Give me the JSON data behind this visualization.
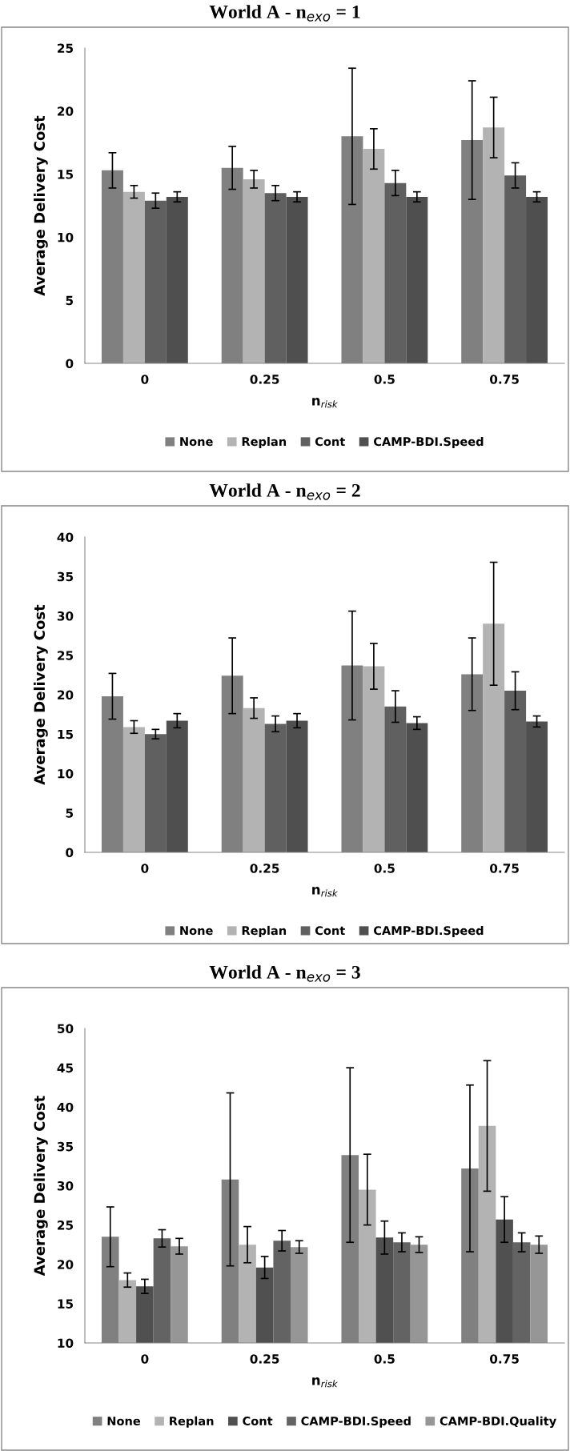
{
  "chart_data": [
    {
      "type": "bar",
      "title": "World A - n$_{exo}$ = 1",
      "xlabel": "n$_{risk}$",
      "ylabel": "Average Delivery Cost",
      "categories": [
        "0",
        "0.25",
        "0.5",
        "0.75"
      ],
      "ylim": [
        0,
        25
      ],
      "yticks": [
        0,
        5,
        10,
        15,
        20,
        25
      ],
      "grid": false,
      "legend": "bottom",
      "series": [
        {
          "name": "None",
          "color": "#808080",
          "values": [
            15.3,
            15.5,
            18.0,
            17.7
          ],
          "errors": [
            1.4,
            1.7,
            5.4,
            4.7
          ]
        },
        {
          "name": "Replan",
          "color": "#b3b3b3",
          "values": [
            13.6,
            14.6,
            17.0,
            18.7
          ],
          "errors": [
            0.5,
            0.7,
            1.6,
            2.4
          ]
        },
        {
          "name": "Cont",
          "color": "#606060",
          "values": [
            12.9,
            13.5,
            14.3,
            14.9
          ],
          "errors": [
            0.6,
            0.6,
            1.0,
            1.0
          ]
        },
        {
          "name": "CAMP-BDI.Speed",
          "color": "#4f4f4f",
          "values": [
            13.2,
            13.2,
            13.2,
            13.2
          ],
          "errors": [
            0.4,
            0.4,
            0.4,
            0.4
          ]
        }
      ]
    },
    {
      "type": "bar",
      "title": "World A - n$_{exo}$ = 2",
      "xlabel": "n$_{risk}$",
      "ylabel": "Average Delivery Cost",
      "categories": [
        "0",
        "0.25",
        "0.5",
        "0.75"
      ],
      "ylim": [
        0,
        40
      ],
      "yticks": [
        0,
        5,
        10,
        15,
        20,
        25,
        30,
        35,
        40
      ],
      "grid": false,
      "legend": "bottom",
      "series": [
        {
          "name": "None",
          "color": "#808080",
          "values": [
            19.8,
            22.4,
            23.7,
            22.6
          ],
          "errors": [
            2.9,
            4.8,
            6.9,
            4.6
          ]
        },
        {
          "name": "Replan",
          "color": "#b3b3b3",
          "values": [
            15.9,
            18.3,
            23.6,
            29.0
          ],
          "errors": [
            0.8,
            1.3,
            2.9,
            7.8
          ]
        },
        {
          "name": "Cont",
          "color": "#606060",
          "values": [
            15.0,
            16.3,
            18.5,
            20.5
          ],
          "errors": [
            0.6,
            1.0,
            2.0,
            2.4
          ]
        },
        {
          "name": "CAMP-BDI.Speed",
          "color": "#4f4f4f",
          "values": [
            16.7,
            16.7,
            16.4,
            16.6
          ],
          "errors": [
            0.9,
            0.9,
            0.8,
            0.7
          ]
        }
      ]
    },
    {
      "type": "bar",
      "title": "World A - n$_{exo}$ = 3",
      "xlabel": "n$_{risk}$",
      "ylabel": "Average Delivery Cost",
      "categories": [
        "0",
        "0.25",
        "0.5",
        "0.75"
      ],
      "ylim": [
        10,
        50
      ],
      "yticks": [
        10,
        15,
        20,
        25,
        30,
        35,
        40,
        45,
        50
      ],
      "grid": false,
      "legend": "bottom",
      "series": [
        {
          "name": "None",
          "color": "#808080",
          "values": [
            23.5,
            30.8,
            33.9,
            32.2
          ],
          "errors": [
            3.8,
            11.0,
            11.1,
            10.6
          ]
        },
        {
          "name": "Replan",
          "color": "#b3b3b3",
          "values": [
            18.0,
            22.5,
            29.5,
            37.6
          ],
          "errors": [
            0.9,
            2.3,
            4.5,
            8.3
          ]
        },
        {
          "name": "Cont",
          "color": "#505050",
          "values": [
            17.2,
            19.6,
            23.4,
            25.7
          ],
          "errors": [
            0.9,
            1.4,
            2.1,
            2.9
          ]
        },
        {
          "name": "CAMP-BDI.Speed",
          "color": "#636363",
          "values": [
            23.3,
            23.0,
            22.8,
            22.8
          ],
          "errors": [
            1.1,
            1.3,
            1.2,
            1.2
          ]
        },
        {
          "name": "CAMP-BDI.Quality",
          "color": "#969696",
          "values": [
            22.3,
            22.2,
            22.5,
            22.5
          ],
          "errors": [
            1.0,
            0.8,
            1.0,
            1.1
          ]
        }
      ]
    }
  ]
}
